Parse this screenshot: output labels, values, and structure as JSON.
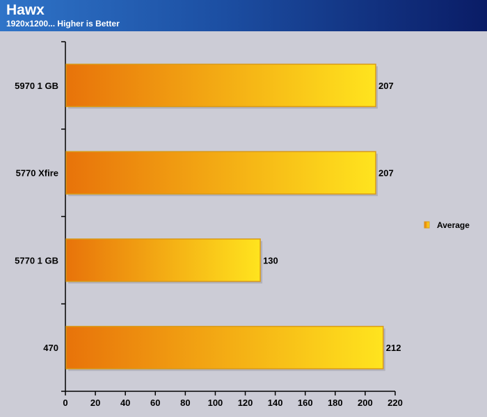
{
  "header": {
    "title": "Hawx",
    "subtitle": "1920x1200... Higher is Better"
  },
  "chart_data": {
    "type": "bar",
    "orientation": "horizontal",
    "categories": [
      "5970 1 GB",
      "5770 Xfire",
      "5770 1 GB",
      "470"
    ],
    "series": [
      {
        "name": "Average",
        "values": [
          207,
          207,
          130,
          212
        ]
      }
    ],
    "xlim": [
      0,
      220
    ],
    "xticks": [
      0,
      20,
      40,
      60,
      80,
      100,
      120,
      140,
      160,
      180,
      200,
      220
    ],
    "grid": false,
    "legend_position": "right",
    "colors": {
      "bar_start": "#e8730a",
      "bar_end": "#ffe41e",
      "bar_edge": "#d89a1a"
    }
  }
}
